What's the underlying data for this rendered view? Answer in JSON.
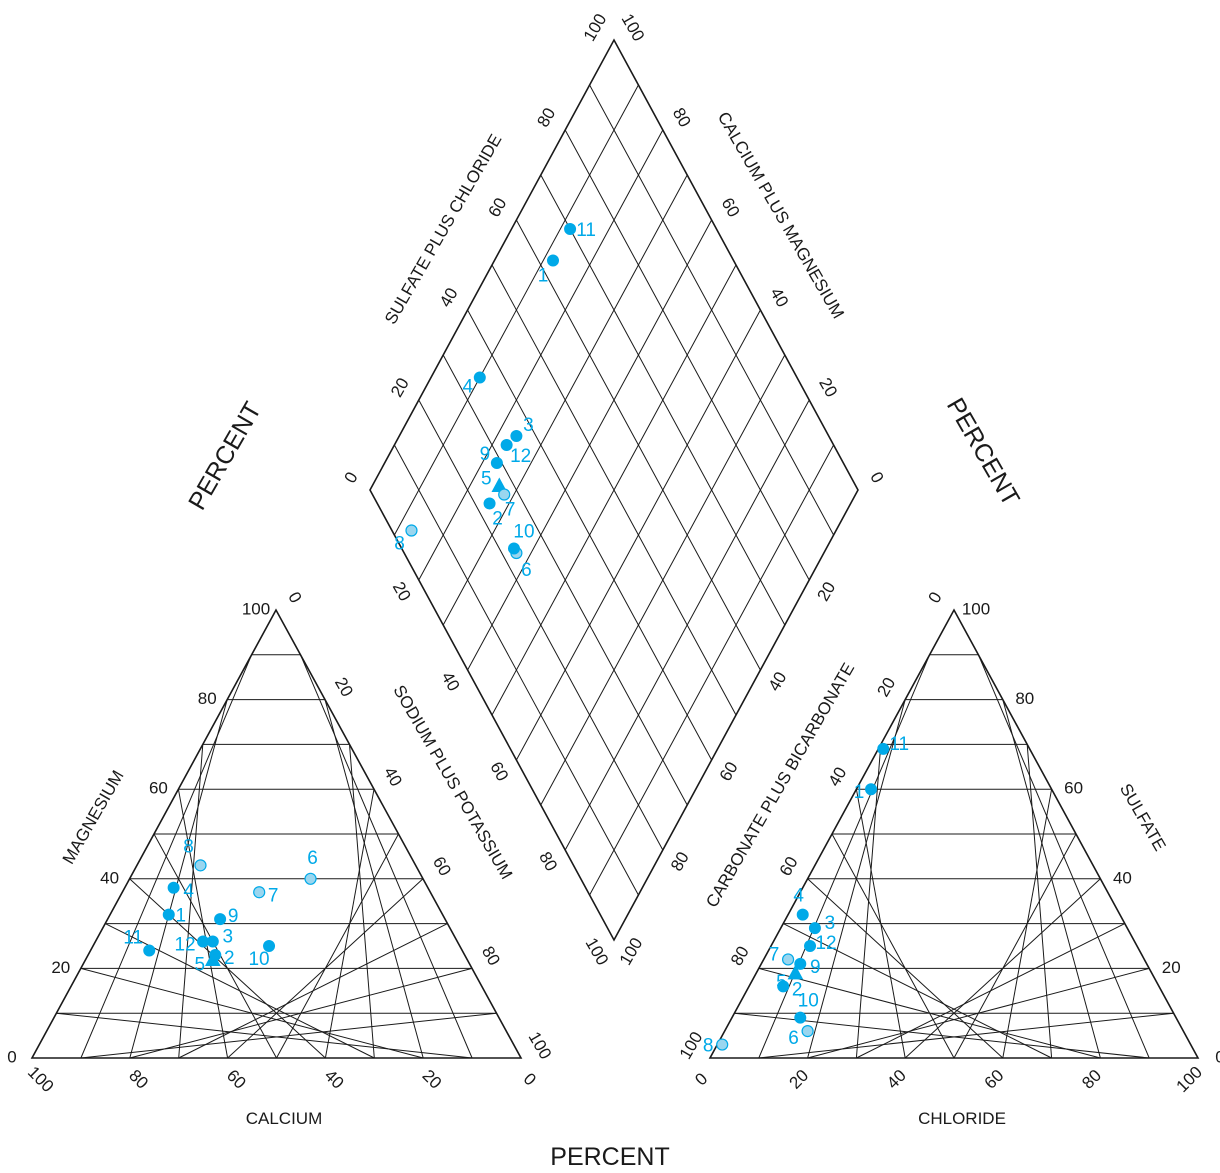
{
  "colors": {
    "sample_solid": "#00a9e8",
    "sample_light": "#9ad6ef",
    "sample_label": "#00a9e8",
    "grid": "#1a1a1a"
  },
  "labels": {
    "percent": "PERCENT",
    "calcium": "CALCIUM",
    "magnesium": "MAGNESIUM",
    "sodium_potassium": "SODIUM PLUS POTASSIUM",
    "chloride": "CHLORIDE",
    "sulfate": "SULFATE",
    "carbonate_bicarbonate": "CARBONATE PLUS BICARBONATE",
    "sulfate_chloride": "SULFATE PLUS CHLORIDE",
    "calcium_magnesium": "CALCIUM PLUS MAGNESIUM"
  },
  "chart_data": {
    "type": "scatter",
    "tick_labels": [
      "0",
      "20",
      "40",
      "60",
      "80",
      "100"
    ],
    "cation_triangle": {
      "axes": [
        "CALCIUM",
        "MAGNESIUM",
        "SODIUM PLUS POTASSIUM"
      ],
      "points": [
        {
          "label": "1",
          "ca": 56,
          "mg": 32,
          "shade": "solid",
          "marker": "circle"
        },
        {
          "label": "2",
          "ca": 51,
          "mg": 23,
          "shade": "solid",
          "marker": "circle"
        },
        {
          "label": "3",
          "ca": 50,
          "mg": 26,
          "shade": "solid",
          "marker": "circle"
        },
        {
          "label": "4",
          "ca": 52,
          "mg": 38,
          "shade": "solid",
          "marker": "circle"
        },
        {
          "label": "5",
          "ca": 52,
          "mg": 22,
          "shade": "solid",
          "marker": "triangle"
        },
        {
          "label": "6",
          "ca": 23,
          "mg": 40,
          "shade": "light",
          "marker": "circle"
        },
        {
          "label": "7",
          "ca": 35,
          "mg": 37,
          "shade": "light",
          "marker": "circle"
        },
        {
          "label": "8",
          "ca": 44,
          "mg": 43,
          "shade": "light",
          "marker": "circle"
        },
        {
          "label": "9",
          "ca": 46,
          "mg": 31,
          "shade": "solid",
          "marker": "circle"
        },
        {
          "label": "10",
          "ca": 39,
          "mg": 25,
          "shade": "solid",
          "marker": "circle"
        },
        {
          "label": "11",
          "ca": 64,
          "mg": 24,
          "shade": "solid",
          "marker": "circle"
        },
        {
          "label": "12",
          "ca": 52,
          "mg": 26,
          "shade": "solid",
          "marker": "circle"
        }
      ]
    },
    "anion_triangle": {
      "axes": [
        "CHLORIDE",
        "SULFATE",
        "CARBONATE PLUS BICARBONATE"
      ],
      "points": [
        {
          "label": "1",
          "cl": 3,
          "so4": 60,
          "shade": "solid",
          "marker": "circle"
        },
        {
          "label": "2",
          "cl": 7,
          "so4": 16,
          "shade": "solid",
          "marker": "circle"
        },
        {
          "label": "3",
          "cl": 7,
          "so4": 29,
          "shade": "solid",
          "marker": "circle"
        },
        {
          "label": "4",
          "cl": 3,
          "so4": 32,
          "shade": "solid",
          "marker": "circle"
        },
        {
          "label": "5",
          "cl": 8,
          "so4": 19,
          "shade": "solid",
          "marker": "triangle"
        },
        {
          "label": "6",
          "cl": 17,
          "so4": 6,
          "shade": "light",
          "marker": "circle"
        },
        {
          "label": "7",
          "cl": 5,
          "so4": 22,
          "shade": "light",
          "marker": "circle"
        },
        {
          "label": "8",
          "cl": 1,
          "so4": 3,
          "shade": "light",
          "marker": "circle"
        },
        {
          "label": "9",
          "cl": 8,
          "so4": 21,
          "shade": "solid",
          "marker": "circle"
        },
        {
          "label": "10",
          "cl": 14,
          "so4": 9,
          "shade": "solid",
          "marker": "circle"
        },
        {
          "label": "11",
          "cl": 1,
          "so4": 69,
          "shade": "solid",
          "marker": "circle"
        },
        {
          "label": "12",
          "cl": 8,
          "so4": 25,
          "shade": "solid",
          "marker": "circle"
        }
      ]
    },
    "diamond": {
      "axes": [
        "SULFATE PLUS CHLORIDE",
        "CALCIUM PLUS MAGNESIUM"
      ],
      "points": [
        {
          "label": "1",
          "so4_cl": 63,
          "ca_mg": 88,
          "shade": "solid",
          "marker": "circle"
        },
        {
          "label": "2",
          "so4_cl": 23,
          "ca_mg": 74,
          "shade": "solid",
          "marker": "circle"
        },
        {
          "label": "3",
          "so4_cl": 36,
          "ca_mg": 76,
          "shade": "solid",
          "marker": "circle"
        },
        {
          "label": "4",
          "so4_cl": 35,
          "ca_mg": 90,
          "shade": "solid",
          "marker": "circle"
        },
        {
          "label": "5",
          "so4_cl": 27,
          "ca_mg": 74,
          "shade": "solid",
          "marker": "triangle"
        },
        {
          "label": "6",
          "so4_cl": 23,
          "ca_mg": 63,
          "shade": "light",
          "marker": "circle"
        },
        {
          "label": "7",
          "so4_cl": 27,
          "ca_mg": 72,
          "shade": "light",
          "marker": "circle"
        },
        {
          "label": "8",
          "so4_cl": 4,
          "ca_mg": 87,
          "shade": "light",
          "marker": "circle"
        },
        {
          "label": "9",
          "so4_cl": 29,
          "ca_mg": 77,
          "shade": "solid",
          "marker": "circle"
        },
        {
          "label": "10",
          "so4_cl": 23,
          "ca_mg": 64,
          "shade": "solid",
          "marker": "circle"
        },
        {
          "label": "11",
          "so4_cl": 70,
          "ca_mg": 88,
          "shade": "solid",
          "marker": "circle"
        },
        {
          "label": "12",
          "so4_cl": 33,
          "ca_mg": 77,
          "shade": "solid",
          "marker": "circle"
        }
      ]
    }
  }
}
